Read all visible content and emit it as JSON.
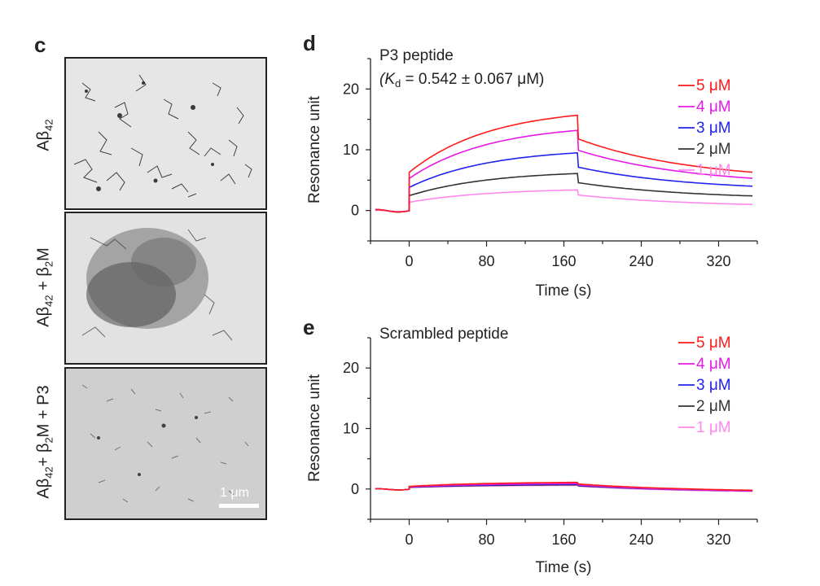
{
  "panel_c": {
    "letter": "c",
    "images": [
      {
        "label_main": "Aβ",
        "label_sub": "42",
        "label_rest": ""
      },
      {
        "label_main": "Aβ",
        "label_sub": "42",
        "label_rest": " + β",
        "label_sub2": "2",
        "label_rest2": "M"
      },
      {
        "label_main": "Aβ",
        "label_sub": "42",
        "label_rest": "+ β",
        "label_sub2": "2",
        "label_rest2": "M + P3"
      }
    ],
    "scale_bar": "1 μm"
  },
  "chart_data": [
    {
      "panel": "d",
      "type": "line",
      "title": "P3 peptide",
      "kd_prefix": "(K",
      "kd_sub": "d",
      "kd_rest": " = 0.542 ± 0.067 μM)",
      "xlabel": "Time (s)",
      "ylabel": "Resonance unit",
      "xlim": [
        -40,
        360
      ],
      "ylim": [
        -5,
        25
      ],
      "xticks": [
        0,
        80,
        160,
        240,
        320
      ],
      "yticks": [
        0,
        10,
        20
      ],
      "grid": false,
      "legend_position": "top-right",
      "series": [
        {
          "name": "5 μM",
          "color": "#ff1a1a",
          "plateau": 15.7,
          "end": 6.3
        },
        {
          "name": "4 μM",
          "color": "#e619e6",
          "plateau": 13.2,
          "end": 5.3
        },
        {
          "name": "3 μM",
          "color": "#2222ee",
          "plateau": 9.5,
          "end": 4.0
        },
        {
          "name": "2 μM",
          "color": "#333333",
          "plateau": 6.1,
          "end": 2.4
        },
        {
          "name": "1 μM",
          "color": "#ff88ee",
          "plateau": 3.4,
          "end": 1.0
        }
      ]
    },
    {
      "panel": "e",
      "type": "line",
      "title": "Scrambled peptide",
      "xlabel": "Time (s)",
      "ylabel": "Resonance unit",
      "xlim": [
        -40,
        360
      ],
      "ylim": [
        -5,
        25
      ],
      "xticks": [
        0,
        80,
        160,
        240,
        320
      ],
      "yticks": [
        0,
        10,
        20
      ],
      "grid": false,
      "legend_position": "top-right",
      "series": [
        {
          "name": "5 μM",
          "color": "#ff1a1a",
          "plateau": 1.1,
          "end": -0.2
        },
        {
          "name": "4 μM",
          "color": "#e619e6",
          "plateau": 0.9,
          "end": -0.3
        },
        {
          "name": "3 μM",
          "color": "#2222ee",
          "plateau": 0.8,
          "end": -0.3
        },
        {
          "name": "2 μM",
          "color": "#333333",
          "plateau": 0.7,
          "end": -0.3
        },
        {
          "name": "1 μM",
          "color": "#ff88ee",
          "plateau": 0.6,
          "end": -0.4
        }
      ]
    }
  ]
}
